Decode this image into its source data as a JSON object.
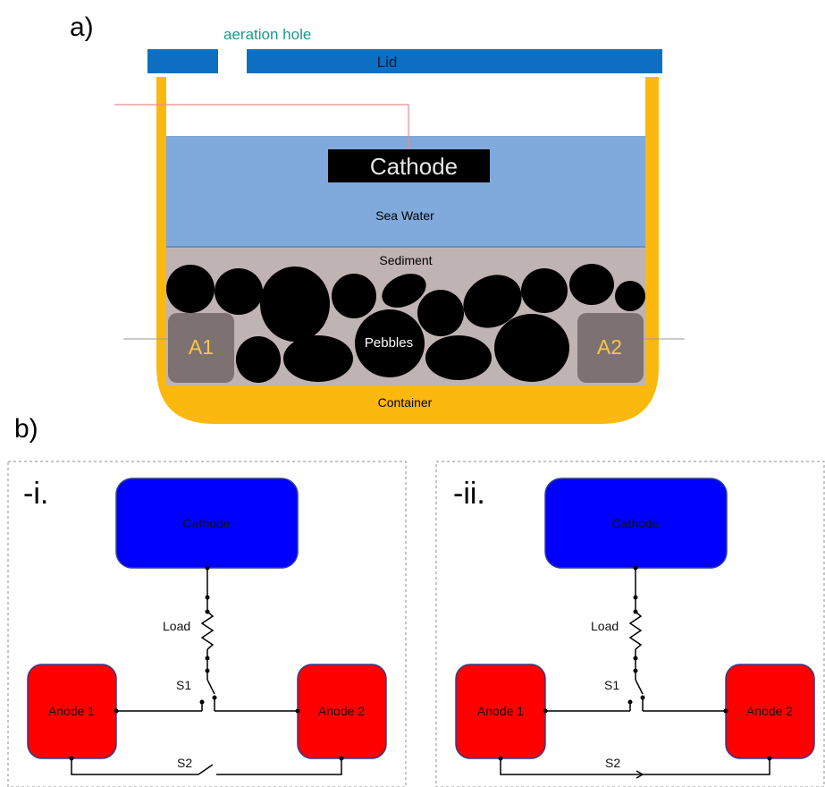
{
  "panel_a": {
    "label": "a)",
    "aeration_hole": "aeration hole",
    "lid": "Lid",
    "cathode": "Cathode",
    "sea_water": "Sea Water",
    "sediment": "Sediment",
    "pebbles": "Pebbles",
    "anode1": "A1",
    "anode2": "A2",
    "container": "Container"
  },
  "panel_b": {
    "label": "b)",
    "circuits": [
      {
        "label": "-i.",
        "cathode": "Cathode",
        "load": "Load",
        "anode1": "Anode 1",
        "anode2": "Anode 2",
        "s1": "S1",
        "s2": "S2",
        "s2_state": "open"
      },
      {
        "label": "-ii.",
        "cathode": "Cathode",
        "load": "Load",
        "anode1": "Anode 1",
        "anode2": "Anode 2",
        "s1": "S1",
        "s2": "S2",
        "s2_state": "closed"
      }
    ]
  },
  "colors": {
    "container": "#fbb80f",
    "lid": "#0c6fc2",
    "sea_water": "#80aadc",
    "sediment": "#c0b3b4",
    "anode_block": "#7e7171",
    "cathode_box": "#0000ff",
    "anode_box": "#ff0000",
    "aeration_text": "#1a9a8c"
  }
}
